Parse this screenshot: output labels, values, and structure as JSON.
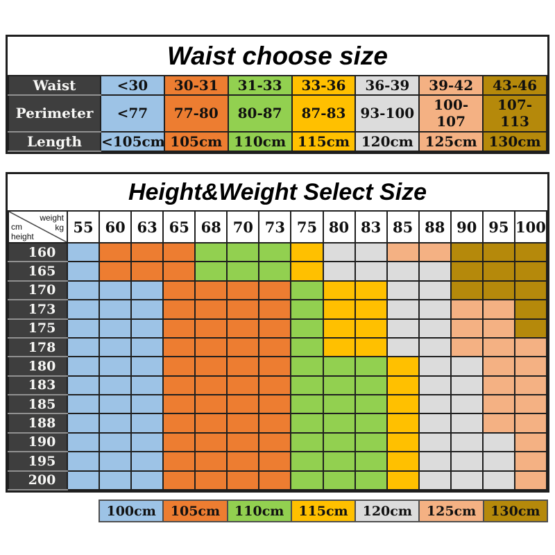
{
  "colors": {
    "blue": "#9DC3E6",
    "orange": "#ED7D31",
    "green": "#92D050",
    "yellow": "#FFC000",
    "gray": "#DCDCDC",
    "peach": "#F4B183",
    "gold": "#B5890B",
    "header_dark": "#3E3E3E",
    "border_dark": "#1F1F1F"
  },
  "waist_table": {
    "title": "Waist choose size",
    "row_labels": [
      "Waist",
      "Perimeter",
      "Length"
    ],
    "columns": [
      {
        "color": "blue",
        "waist": "<30",
        "perimeter": "<77",
        "length": "<105cm"
      },
      {
        "color": "orange",
        "waist": "30-31",
        "perimeter": "77-80",
        "length": "105cm"
      },
      {
        "color": "green",
        "waist": "31-33",
        "perimeter": "80-87",
        "length": "110cm"
      },
      {
        "color": "yellow",
        "waist": "33-36",
        "perimeter": "87-83",
        "length": "115cm"
      },
      {
        "color": "gray",
        "waist": "36-39",
        "perimeter": "93-100",
        "length": "120cm"
      },
      {
        "color": "peach",
        "waist": "39-42",
        "perimeter": "100-107",
        "length": "125cm"
      },
      {
        "color": "gold",
        "waist": "43-46",
        "perimeter": "107-113",
        "length": "130cm"
      }
    ]
  },
  "hw_table": {
    "title": "Height&Weight Select Size",
    "corner": {
      "weight": "weight",
      "kg": "kg",
      "cm": "cm",
      "height": "height"
    },
    "weights": [
      "55",
      "60",
      "63",
      "65",
      "68",
      "70",
      "73",
      "75",
      "80",
      "83",
      "85",
      "88",
      "90",
      "95",
      "100"
    ],
    "heights": [
      "160",
      "165",
      "170",
      "173",
      "175",
      "178",
      "180",
      "183",
      "185",
      "188",
      "190",
      "195",
      "200"
    ],
    "code_map": {
      "B": "blue",
      "O": "orange",
      "G": "green",
      "Y": "yellow",
      "S": "gray",
      "P": "peach",
      "D": "gold"
    },
    "grid": [
      "BOOOGGGYSSPPDDD",
      "BOOOGGGYSSSSDDD",
      "BBBOOOOGYYSSDDD",
      "BBBOOOOGYYSSPPD",
      "BBBOOOOGYYSSPPD",
      "BBBOOOOGYYSSPPP",
      "BBBOOOOGGGYSSPP",
      "BBBOOOOGGGYSSPP",
      "BBBOOOOGGGYSSPP",
      "BBBOOOOGGGYSSPP",
      "BBBOOOOGGGYSSSP",
      "BBBOOOOGGGYSSSP",
      "BBBOOOOGGGYSSSP"
    ]
  },
  "legend": {
    "items": [
      {
        "label": "100cm",
        "color": "blue"
      },
      {
        "label": "105cm",
        "color": "orange"
      },
      {
        "label": "110cm",
        "color": "green"
      },
      {
        "label": "115cm",
        "color": "yellow"
      },
      {
        "label": "120cm",
        "color": "gray"
      },
      {
        "label": "125cm",
        "color": "peach"
      },
      {
        "label": "130cm",
        "color": "gold"
      }
    ]
  },
  "chart_data": [
    {
      "type": "table",
      "title": "Waist choose size",
      "rows": [
        [
          "Waist",
          "<30",
          "30-31",
          "31-33",
          "33-36",
          "36-39",
          "39-42",
          "43-46"
        ],
        [
          "Perimeter",
          "<77",
          "77-80",
          "80-87",
          "87-83",
          "93-100",
          "100-107",
          "107-113"
        ],
        [
          "Length",
          "<105cm",
          "105cm",
          "110cm",
          "115cm",
          "120cm",
          "125cm",
          "130cm"
        ]
      ]
    },
    {
      "type": "heatmap",
      "title": "Height&Weight Select Size",
      "x_label": "weight kg",
      "y_label": "height cm",
      "x": [
        55,
        60,
        63,
        65,
        68,
        70,
        73,
        75,
        80,
        83,
        85,
        88,
        90,
        95,
        100
      ],
      "y": [
        160,
        165,
        170,
        173,
        175,
        178,
        180,
        183,
        185,
        188,
        190,
        195,
        200
      ],
      "values_size_cm": [
        [
          100,
          105,
          105,
          105,
          110,
          110,
          110,
          115,
          120,
          120,
          125,
          125,
          130,
          130,
          130
        ],
        [
          100,
          105,
          105,
          105,
          110,
          110,
          110,
          115,
          120,
          120,
          120,
          120,
          130,
          130,
          130
        ],
        [
          100,
          100,
          100,
          105,
          105,
          105,
          105,
          110,
          115,
          115,
          120,
          120,
          130,
          130,
          130
        ],
        [
          100,
          100,
          100,
          105,
          105,
          105,
          105,
          110,
          115,
          115,
          120,
          120,
          125,
          125,
          130
        ],
        [
          100,
          100,
          100,
          105,
          105,
          105,
          105,
          110,
          115,
          115,
          120,
          120,
          125,
          125,
          130
        ],
        [
          100,
          100,
          100,
          105,
          105,
          105,
          105,
          110,
          115,
          115,
          120,
          120,
          125,
          125,
          125
        ],
        [
          100,
          100,
          100,
          105,
          105,
          105,
          105,
          110,
          110,
          110,
          115,
          120,
          120,
          125,
          125
        ],
        [
          100,
          100,
          100,
          105,
          105,
          105,
          105,
          110,
          110,
          110,
          115,
          120,
          120,
          125,
          125
        ],
        [
          100,
          100,
          100,
          105,
          105,
          105,
          105,
          110,
          110,
          110,
          115,
          120,
          120,
          125,
          125
        ],
        [
          100,
          100,
          100,
          105,
          105,
          105,
          105,
          110,
          110,
          110,
          115,
          120,
          120,
          125,
          125
        ],
        [
          100,
          100,
          100,
          105,
          105,
          105,
          105,
          110,
          110,
          110,
          115,
          120,
          120,
          120,
          125
        ],
        [
          100,
          100,
          100,
          105,
          105,
          105,
          105,
          110,
          110,
          110,
          115,
          120,
          120,
          120,
          125
        ],
        [
          100,
          100,
          100,
          105,
          105,
          105,
          105,
          110,
          110,
          110,
          115,
          120,
          120,
          120,
          125
        ]
      ],
      "legend": [
        "100cm",
        "105cm",
        "110cm",
        "115cm",
        "120cm",
        "125cm",
        "130cm"
      ],
      "legend_position": "bottom"
    }
  ]
}
